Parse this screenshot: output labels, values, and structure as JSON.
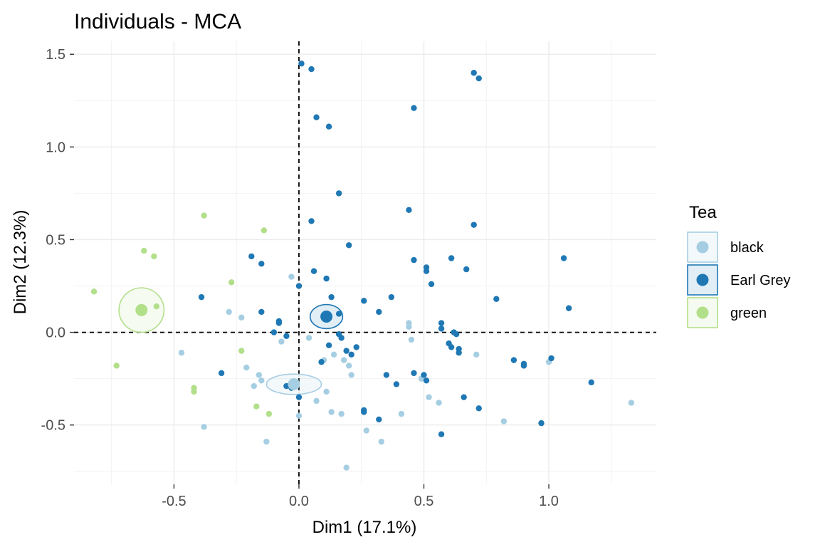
{
  "chart_data": {
    "type": "scatter",
    "title": "Individuals - MCA",
    "xlabel": "Dim1 (17.1%)",
    "ylabel": "Dim2 (12.3%)",
    "xlim": [
      -0.9,
      1.43
    ],
    "ylim": [
      -0.82,
      1.57
    ],
    "x_ticks": [
      -0.5,
      0.0,
      0.5,
      1.0
    ],
    "y_ticks": [
      -0.5,
      0.0,
      0.5,
      1.0,
      1.5
    ],
    "x_tick_labels": [
      "-0.5",
      "0.0",
      "0.5",
      "1.0"
    ],
    "y_tick_labels": [
      "-0.5",
      "0.0",
      "0.5",
      "1.0",
      "1.5"
    ],
    "grid": true,
    "reference_lines": {
      "x": 0,
      "y": 0
    },
    "legend": {
      "title": "Tea",
      "placement": "right"
    },
    "series": [
      {
        "name": "black",
        "color": "#a6cee3",
        "centroid": [
          -0.02,
          -0.28
        ],
        "ellipse": {
          "rx": 0.11,
          "ry": 0.055
        },
        "points": [
          [
            -0.03,
            0.3
          ],
          [
            -0.28,
            0.11
          ],
          [
            -0.23,
            0.08
          ],
          [
            -0.47,
            -0.11
          ],
          [
            -0.07,
            -0.05
          ],
          [
            -0.21,
            -0.19
          ],
          [
            -0.16,
            -0.23
          ],
          [
            -0.15,
            -0.26
          ],
          [
            -0.18,
            -0.29
          ],
          [
            -0.38,
            -0.51
          ],
          [
            -0.13,
            -0.59
          ],
          [
            -0.05,
            -0.29
          ],
          [
            0.04,
            -0.03
          ],
          [
            0.1,
            -0.15
          ],
          [
            0.14,
            -0.12
          ],
          [
            0.18,
            -0.15
          ],
          [
            0.2,
            -0.18
          ],
          [
            0.21,
            -0.23
          ],
          [
            0.07,
            -0.37
          ],
          [
            0.11,
            -0.32
          ],
          [
            0.13,
            -0.43
          ],
          [
            0.17,
            -0.44
          ],
          [
            0.0,
            -0.45
          ],
          [
            0.19,
            -0.73
          ],
          [
            0.27,
            -0.53
          ],
          [
            0.33,
            -0.59
          ],
          [
            0.41,
            -0.44
          ],
          [
            0.44,
            0.03
          ],
          [
            0.44,
            0.05
          ],
          [
            0.45,
            -0.04
          ],
          [
            0.49,
            -0.25
          ],
          [
            0.52,
            -0.35
          ],
          [
            0.56,
            -0.38
          ],
          [
            0.57,
            0.02
          ],
          [
            0.71,
            -0.12
          ],
          [
            0.82,
            -0.48
          ],
          [
            1.0,
            -0.16
          ],
          [
            1.33,
            -0.38
          ]
        ]
      },
      {
        "name": "Earl Grey",
        "color": "#1f78b4",
        "centroid": [
          0.11,
          0.085
        ],
        "ellipse": {
          "rx": 0.065,
          "ry": 0.065
        },
        "points": [
          [
            0.01,
            1.45
          ],
          [
            0.05,
            1.42
          ],
          [
            0.07,
            1.16
          ],
          [
            0.12,
            1.11
          ],
          [
            0.46,
            1.21
          ],
          [
            0.7,
            1.4
          ],
          [
            0.72,
            1.37
          ],
          [
            0.16,
            0.75
          ],
          [
            0.05,
            0.6
          ],
          [
            0.2,
            0.47
          ],
          [
            0.44,
            0.66
          ],
          [
            0.7,
            0.58
          ],
          [
            -0.19,
            0.41
          ],
          [
            -0.15,
            0.37
          ],
          [
            0.06,
            0.33
          ],
          [
            0.11,
            0.29
          ],
          [
            0.0,
            0.25
          ],
          [
            0.46,
            0.39
          ],
          [
            0.51,
            0.35
          ],
          [
            0.51,
            0.33
          ],
          [
            0.53,
            0.26
          ],
          [
            0.61,
            0.4
          ],
          [
            0.67,
            0.34
          ],
          [
            1.06,
            0.4
          ],
          [
            -0.39,
            0.19
          ],
          [
            0.13,
            0.19
          ],
          [
            0.26,
            0.17
          ],
          [
            0.37,
            0.19
          ],
          [
            0.79,
            0.18
          ],
          [
            1.08,
            0.13
          ],
          [
            -0.15,
            0.11
          ],
          [
            -0.08,
            0.06
          ],
          [
            -0.08,
            0.05
          ],
          [
            -0.1,
            0.0
          ],
          [
            -0.05,
            -0.02
          ],
          [
            0.16,
            0.1
          ],
          [
            0.32,
            0.11
          ],
          [
            0.57,
            0.05
          ],
          [
            0.57,
            0.02
          ],
          [
            0.62,
            0.0
          ],
          [
            0.63,
            -0.01
          ],
          [
            0.16,
            -0.01
          ],
          [
            0.17,
            -0.03
          ],
          [
            0.23,
            -0.08
          ],
          [
            0.12,
            -0.07
          ],
          [
            0.19,
            -0.1
          ],
          [
            0.21,
            -0.12
          ],
          [
            0.09,
            -0.16
          ],
          [
            0.6,
            -0.06
          ],
          [
            0.61,
            -0.08
          ],
          [
            0.64,
            -0.09
          ],
          [
            0.64,
            -0.11
          ],
          [
            0.86,
            -0.15
          ],
          [
            0.9,
            -0.17
          ],
          [
            0.9,
            -0.18
          ],
          [
            1.01,
            -0.14
          ],
          [
            -0.31,
            -0.22
          ],
          [
            0.35,
            -0.23
          ],
          [
            0.46,
            -0.22
          ],
          [
            0.5,
            -0.23
          ],
          [
            0.51,
            -0.26
          ],
          [
            0.39,
            -0.28
          ],
          [
            -0.05,
            -0.29
          ],
          [
            -0.03,
            -0.3
          ],
          [
            0.0,
            -0.35
          ],
          [
            0.26,
            -0.42
          ],
          [
            0.26,
            -0.43
          ],
          [
            0.32,
            -0.47
          ],
          [
            0.66,
            -0.35
          ],
          [
            0.72,
            -0.41
          ],
          [
            0.57,
            -0.55
          ],
          [
            0.97,
            -0.49
          ],
          [
            1.17,
            -0.27
          ]
        ]
      },
      {
        "name": "green",
        "color": "#b2df8a",
        "centroid": [
          -0.63,
          0.12
        ],
        "ellipse": {
          "rx": 0.09,
          "ry": 0.12
        },
        "points": [
          [
            -0.38,
            0.63
          ],
          [
            -0.14,
            0.55
          ],
          [
            -0.62,
            0.44
          ],
          [
            -0.58,
            0.41
          ],
          [
            -0.27,
            0.27
          ],
          [
            -0.82,
            0.22
          ],
          [
            -0.57,
            0.14
          ],
          [
            -0.23,
            -0.1
          ],
          [
            -0.73,
            -0.18
          ],
          [
            -0.42,
            -0.3
          ],
          [
            -0.42,
            -0.32
          ],
          [
            -0.17,
            -0.4
          ],
          [
            -0.12,
            -0.44
          ]
        ]
      }
    ]
  }
}
